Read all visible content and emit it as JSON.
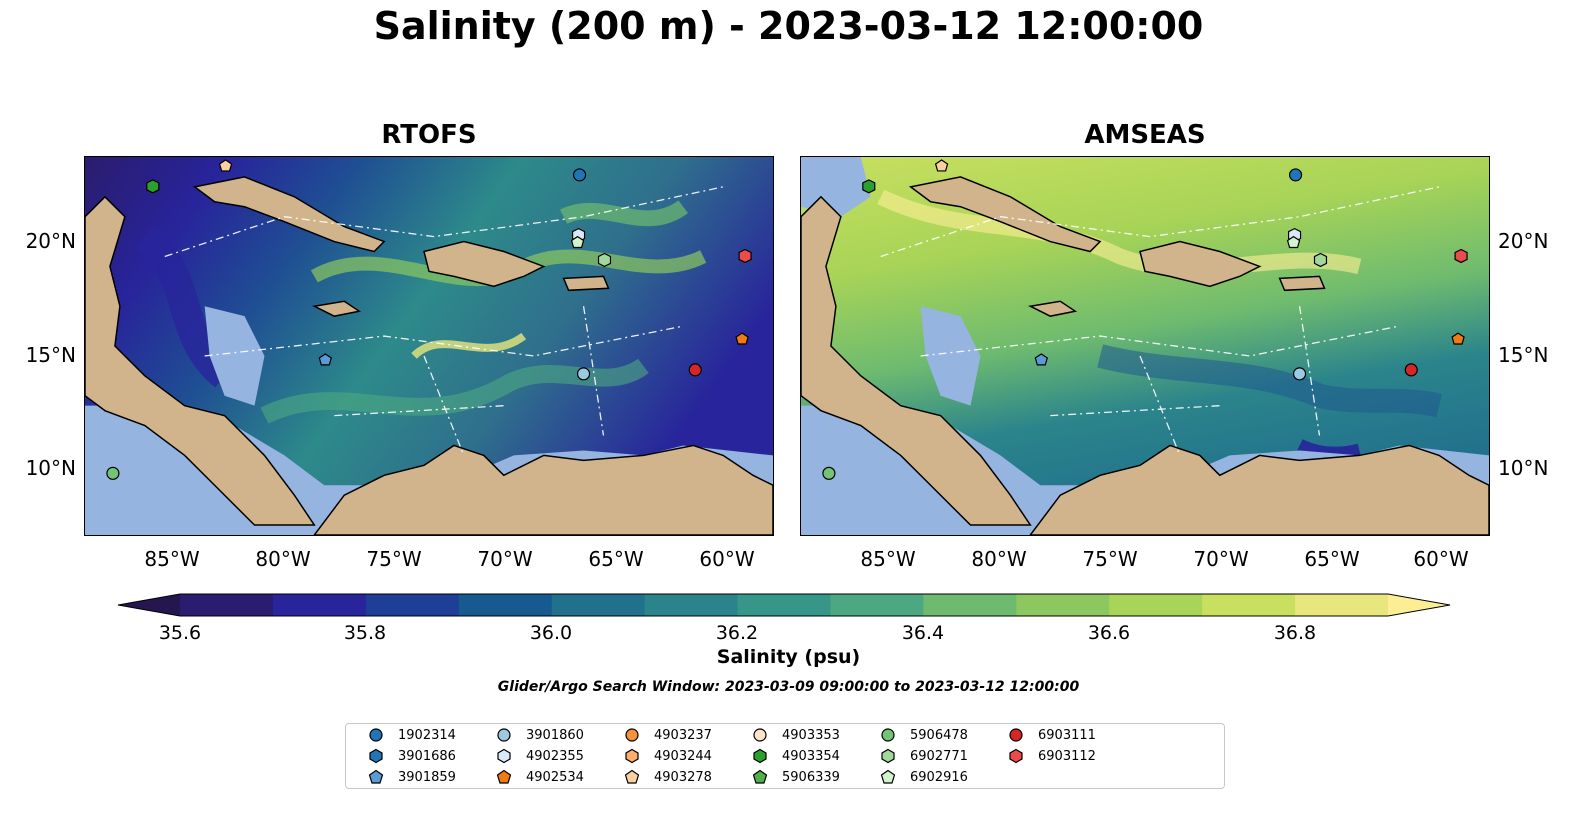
{
  "title": "Salinity (200 m) - 2023-03-12 12:00:00",
  "panels": [
    {
      "id": "rtofs",
      "title": "RTOFS"
    },
    {
      "id": "amseas",
      "title": "AMSEAS"
    }
  ],
  "axes": {
    "lon_ticks": [
      "85°W",
      "80°W",
      "75°W",
      "70°W",
      "65°W",
      "60°W"
    ],
    "lat_ticks": [
      "20°N",
      "15°N",
      "10°N"
    ]
  },
  "colorbar": {
    "label": "Salinity (psu)",
    "tick_labels": [
      "35.6",
      "35.8",
      "36.0",
      "36.2",
      "36.4",
      "36.6",
      "36.8"
    ],
    "colors": [
      "#2a1c6e",
      "#28249b",
      "#1f3e98",
      "#175a8f",
      "#21708c",
      "#2b848b",
      "#369788",
      "#4ca882",
      "#6ebb6f",
      "#8cc85f",
      "#a8d457",
      "#c8df60",
      "#e7e77d"
    ],
    "extend_low": "#26164f",
    "extend_high": "#fdee96"
  },
  "search_window": "Glider/Argo Search Window: 2023-03-09 09:00:00 to 2023-03-12 12:00:00",
  "legend": {
    "entries": [
      {
        "id": "1902314",
        "marker": "circle",
        "color": "#2274b8"
      },
      {
        "id": "3901686",
        "marker": "hexagon",
        "color": "#2274b8"
      },
      {
        "id": "3901859",
        "marker": "pentagon",
        "color": "#5b9bd5"
      },
      {
        "id": "3901860",
        "marker": "circle",
        "color": "#9ecae1"
      },
      {
        "id": "4902355",
        "marker": "hexagon",
        "color": "#d6eaf8"
      },
      {
        "id": "4902534",
        "marker": "pentagon",
        "color": "#f07b14"
      },
      {
        "id": "4903237",
        "marker": "circle",
        "color": "#f8923a"
      },
      {
        "id": "4903244",
        "marker": "hexagon",
        "color": "#fdae6b"
      },
      {
        "id": "4903278",
        "marker": "pentagon",
        "color": "#fdd0a2"
      },
      {
        "id": "4903353",
        "marker": "circle",
        "color": "#fde3cc"
      },
      {
        "id": "4903354",
        "marker": "hexagon",
        "color": "#2ca02c"
      },
      {
        "id": "5906339",
        "marker": "pentagon",
        "color": "#4fb04b"
      },
      {
        "id": "5906478",
        "marker": "circle",
        "color": "#74c476"
      },
      {
        "id": "6902771",
        "marker": "hexagon",
        "color": "#a1d99b"
      },
      {
        "id": "6902916",
        "marker": "pentagon",
        "color": "#d3f2cf"
      },
      {
        "id": "6903111",
        "marker": "circle",
        "color": "#d62728"
      },
      {
        "id": "6903112",
        "marker": "hexagon",
        "color": "#ef4a4a"
      }
    ]
  },
  "map_colors": {
    "land": "#d2b48c",
    "shelf": "#96b4e0"
  }
}
